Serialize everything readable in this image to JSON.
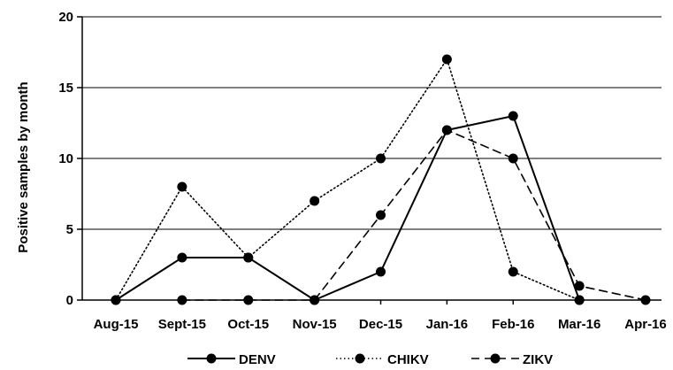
{
  "chart_data": {
    "type": "line",
    "title": "",
    "xlabel": "",
    "ylabel": "Positive samples by month",
    "ylim": [
      0,
      20
    ],
    "yticks": [
      0,
      5,
      10,
      15,
      20
    ],
    "grid": "horizontal",
    "legend_position": "bottom",
    "categories": [
      "Aug-15",
      "Sept-15",
      "Oct-15",
      "Nov-15",
      "Dec-15",
      "Jan-16",
      "Feb-16",
      "Mar-16",
      "Apr-16"
    ],
    "series": [
      {
        "name": "DENV",
        "values": [
          0,
          3,
          3,
          0,
          2,
          12,
          13,
          0,
          null
        ],
        "line_style": "solid",
        "color": "#000000"
      },
      {
        "name": "CHIKV",
        "values": [
          0,
          8,
          3,
          7,
          10,
          17,
          2,
          0,
          null
        ],
        "line_style": "dotted",
        "color": "#000000"
      },
      {
        "name": "ZIKV",
        "values": [
          null,
          0,
          0,
          0,
          6,
          12,
          10,
          1,
          0
        ],
        "line_style": "dashed",
        "color": "#000000"
      }
    ]
  }
}
